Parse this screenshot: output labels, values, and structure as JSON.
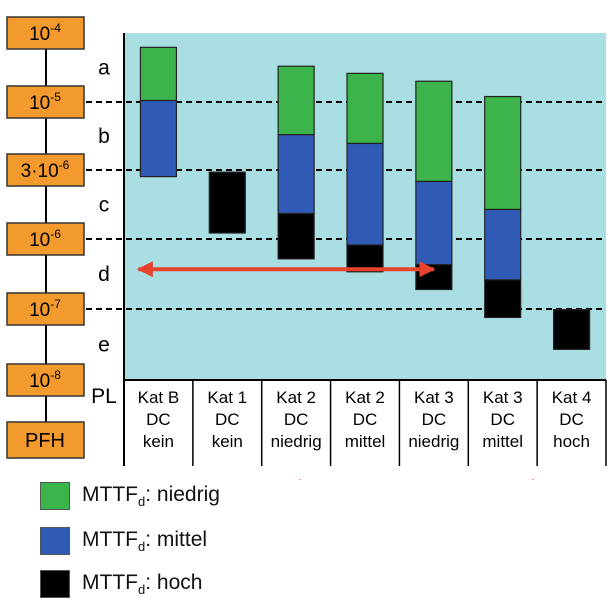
{
  "chart_data": {
    "type": "bar",
    "title": "",
    "y_scale": "log",
    "y_axis": {
      "title": "PFH",
      "ticks": [
        {
          "value": 0.0001,
          "base": "10",
          "exp": "-4",
          "prefix": ""
        },
        {
          "value": 1e-05,
          "base": "10",
          "exp": "-5",
          "prefix": ""
        },
        {
          "value": 3e-06,
          "base": "10",
          "exp": "-6",
          "prefix": "3·"
        },
        {
          "value": 1e-06,
          "base": "10",
          "exp": "-6",
          "prefix": ""
        },
        {
          "value": 1e-07,
          "base": "10",
          "exp": "-7",
          "prefix": ""
        },
        {
          "value": 1e-08,
          "base": "10",
          "exp": "-8",
          "prefix": ""
        }
      ]
    },
    "ylim": [
      1e-08,
      0.0001
    ],
    "pl_label": "PL",
    "pl_levels": [
      {
        "label": "a",
        "from": 0.0001,
        "to": 1e-05
      },
      {
        "label": "b",
        "from": 1e-05,
        "to": 3e-06
      },
      {
        "label": "c",
        "from": 3e-06,
        "to": 1e-06
      },
      {
        "label": "d",
        "from": 1e-06,
        "to": 1e-07
      },
      {
        "label": "e",
        "from": 1e-07,
        "to": 1e-08
      }
    ],
    "categories": [
      [
        "Kat B",
        "DC",
        "kein"
      ],
      [
        "Kat 1",
        "DC",
        "kein"
      ],
      [
        "Kat 2",
        "DC",
        "niedrig"
      ],
      [
        "Kat 2",
        "DC",
        "mittel"
      ],
      [
        "Kat 3",
        "DC",
        "niedrig"
      ],
      [
        "Kat 3",
        "DC",
        "mittel"
      ],
      [
        "Kat 4",
        "DC",
        "hoch"
      ]
    ],
    "series": [
      {
        "key": "niedrig",
        "color": "#3cb44b",
        "ranges": [
          [
            1.05e-05,
            6.2e-05
          ],
          null,
          [
            5.6e-06,
            3.3e-05
          ],
          [
            4.8e-06,
            2.6e-05
          ],
          [
            2.5e-06,
            2e-05
          ],
          [
            1.6e-06,
            1.2e-05
          ],
          null
        ]
      },
      {
        "key": "mittel",
        "color": "#2f5bb7",
        "ranges": [
          [
            2.7e-06,
            1.05e-05
          ],
          null,
          [
            1.5e-06,
            5.6e-06
          ],
          [
            8.2e-07,
            4.8e-06
          ],
          [
            4.3e-07,
            2.5e-06
          ],
          [
            2.6e-07,
            1.6e-06
          ],
          null
        ]
      },
      {
        "key": "hoch",
        "color": "#000000",
        "ranges": [
          null,
          [
            1.1e-06,
            2.9e-06
          ],
          [
            5.2e-07,
            1.5e-06
          ],
          [
            3.4e-07,
            8.2e-07
          ],
          [
            1.9e-07,
            4.3e-07
          ],
          [
            7.6e-08,
            2.6e-07
          ],
          [
            2.7e-08,
            9.8e-08
          ]
        ]
      }
    ],
    "arrows": [
      {
        "from_category": 0,
        "to_category": 4,
        "at_value": 3.7e-07
      },
      {
        "from_category": 2,
        "to_category": 6,
        "position": "below axis labels"
      }
    ],
    "legend": {
      "placement": "bottom-left",
      "prefix": "MTTF",
      "sub": "d",
      "items": [
        {
          "key": "niedrig",
          "label": ": niedrig",
          "color": "#3cb44b"
        },
        {
          "key": "mittel",
          "label": ": mittel",
          "color": "#2f5bb7"
        },
        {
          "key": "hoch",
          "label": ": hoch",
          "color": "#000000"
        }
      ]
    },
    "grid": "dashed lines at PL boundaries",
    "plot_bg": "#a9dfe3",
    "tick_box_color": "#f39a2e",
    "arrow_color": "#e8432d"
  }
}
